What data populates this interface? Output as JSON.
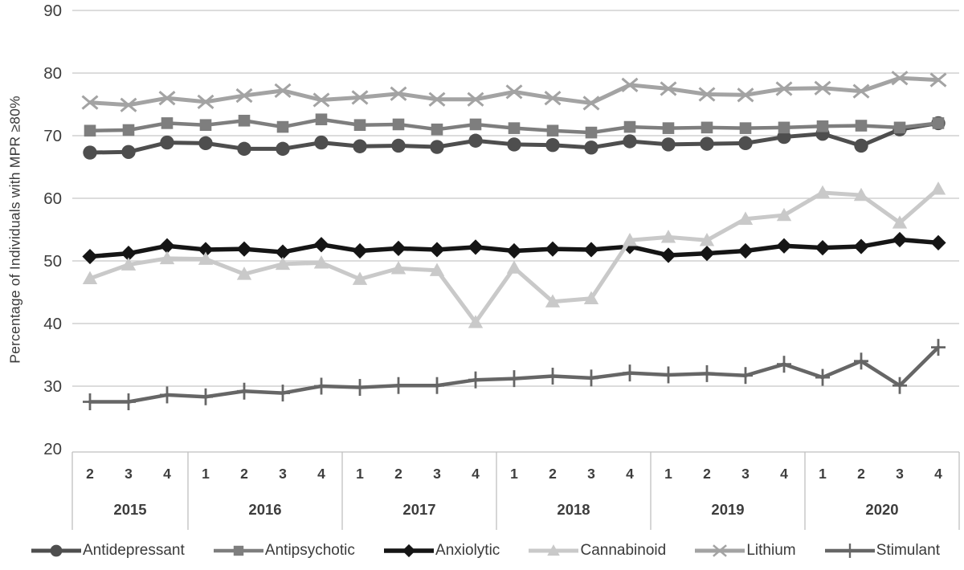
{
  "chart_data": {
    "type": "line",
    "title": "",
    "ylabel": "Percentage of Individuals with MPR ≥80%",
    "xlabel": "",
    "ylim": [
      20,
      90
    ],
    "yticks": [
      "20",
      "30",
      "40",
      "50",
      "60",
      "70",
      "80",
      "90"
    ],
    "grid": true,
    "legend_position": "bottom",
    "x_groups": [
      {
        "year": "2015",
        "quarters": [
          "2",
          "3",
          "4"
        ]
      },
      {
        "year": "2016",
        "quarters": [
          "1",
          "2",
          "3",
          "4"
        ]
      },
      {
        "year": "2017",
        "quarters": [
          "1",
          "2",
          "3",
          "4"
        ]
      },
      {
        "year": "2018",
        "quarters": [
          "1",
          "2",
          "3",
          "4"
        ]
      },
      {
        "year": "2019",
        "quarters": [
          "1",
          "2",
          "3",
          "4"
        ]
      },
      {
        "year": "2020",
        "quarters": [
          "1",
          "2",
          "3",
          "4"
        ]
      }
    ],
    "series": [
      {
        "name": "Antidepressant",
        "marker": "circle",
        "color": "#4e4e4e",
        "width": 5,
        "values": [
          67.3,
          67.4,
          68.9,
          68.8,
          67.9,
          67.9,
          68.9,
          68.3,
          68.4,
          68.2,
          69.2,
          68.6,
          68.5,
          68.1,
          69.1,
          68.6,
          68.7,
          68.8,
          69.8,
          70.3,
          68.4,
          71.0,
          72.0
        ]
      },
      {
        "name": "Antipsychotic",
        "marker": "square",
        "color": "#7e7e7e",
        "width": 4.5,
        "values": [
          70.8,
          70.9,
          72.0,
          71.7,
          72.4,
          71.4,
          72.6,
          71.7,
          71.8,
          71.0,
          71.8,
          71.2,
          70.8,
          70.5,
          71.4,
          71.2,
          71.3,
          71.2,
          71.3,
          71.5,
          71.6,
          71.3,
          72.0
        ]
      },
      {
        "name": "Anxiolytic",
        "marker": "diamond",
        "color": "#151515",
        "width": 5.5,
        "values": [
          50.7,
          51.2,
          52.4,
          51.8,
          51.9,
          51.4,
          52.6,
          51.6,
          52.0,
          51.8,
          52.2,
          51.6,
          51.9,
          51.8,
          52.3,
          50.9,
          51.2,
          51.6,
          52.4,
          52.1,
          52.3,
          53.4,
          52.9
        ]
      },
      {
        "name": "Cannabinoid",
        "marker": "triangle",
        "color": "#c9c9c9",
        "width": 5,
        "values": [
          47.2,
          49.4,
          50.4,
          50.3,
          47.9,
          49.5,
          49.7,
          47.1,
          48.8,
          48.5,
          40.2,
          48.9,
          43.5,
          44.0,
          53.3,
          53.8,
          53.3,
          56.7,
          57.3,
          60.9,
          60.5,
          56.1,
          61.5
        ]
      },
      {
        "name": "Lithium",
        "marker": "x",
        "color": "#a3a3a3",
        "width": 5,
        "values": [
          75.3,
          74.9,
          76.0,
          75.4,
          76.4,
          77.2,
          75.7,
          76.1,
          76.7,
          75.8,
          75.8,
          77.0,
          76.0,
          75.2,
          78.1,
          77.5,
          76.6,
          76.5,
          77.5,
          77.6,
          77.1,
          79.2,
          78.9
        ]
      },
      {
        "name": "Stimulant",
        "marker": "plus",
        "color": "#666666",
        "width": 4.5,
        "values": [
          27.5,
          27.5,
          28.6,
          28.3,
          29.2,
          28.9,
          30.0,
          29.8,
          30.1,
          30.1,
          31.0,
          31.2,
          31.6,
          31.3,
          32.1,
          31.8,
          32.0,
          31.7,
          33.5,
          31.4,
          34.0,
          30.1,
          36.2
        ]
      }
    ],
    "colors": {
      "gridline": "#c8c8c8",
      "table_border": "#bfbfbf",
      "tick_text": "#3d3d3d",
      "axis_text": "#3b3b3b"
    }
  }
}
